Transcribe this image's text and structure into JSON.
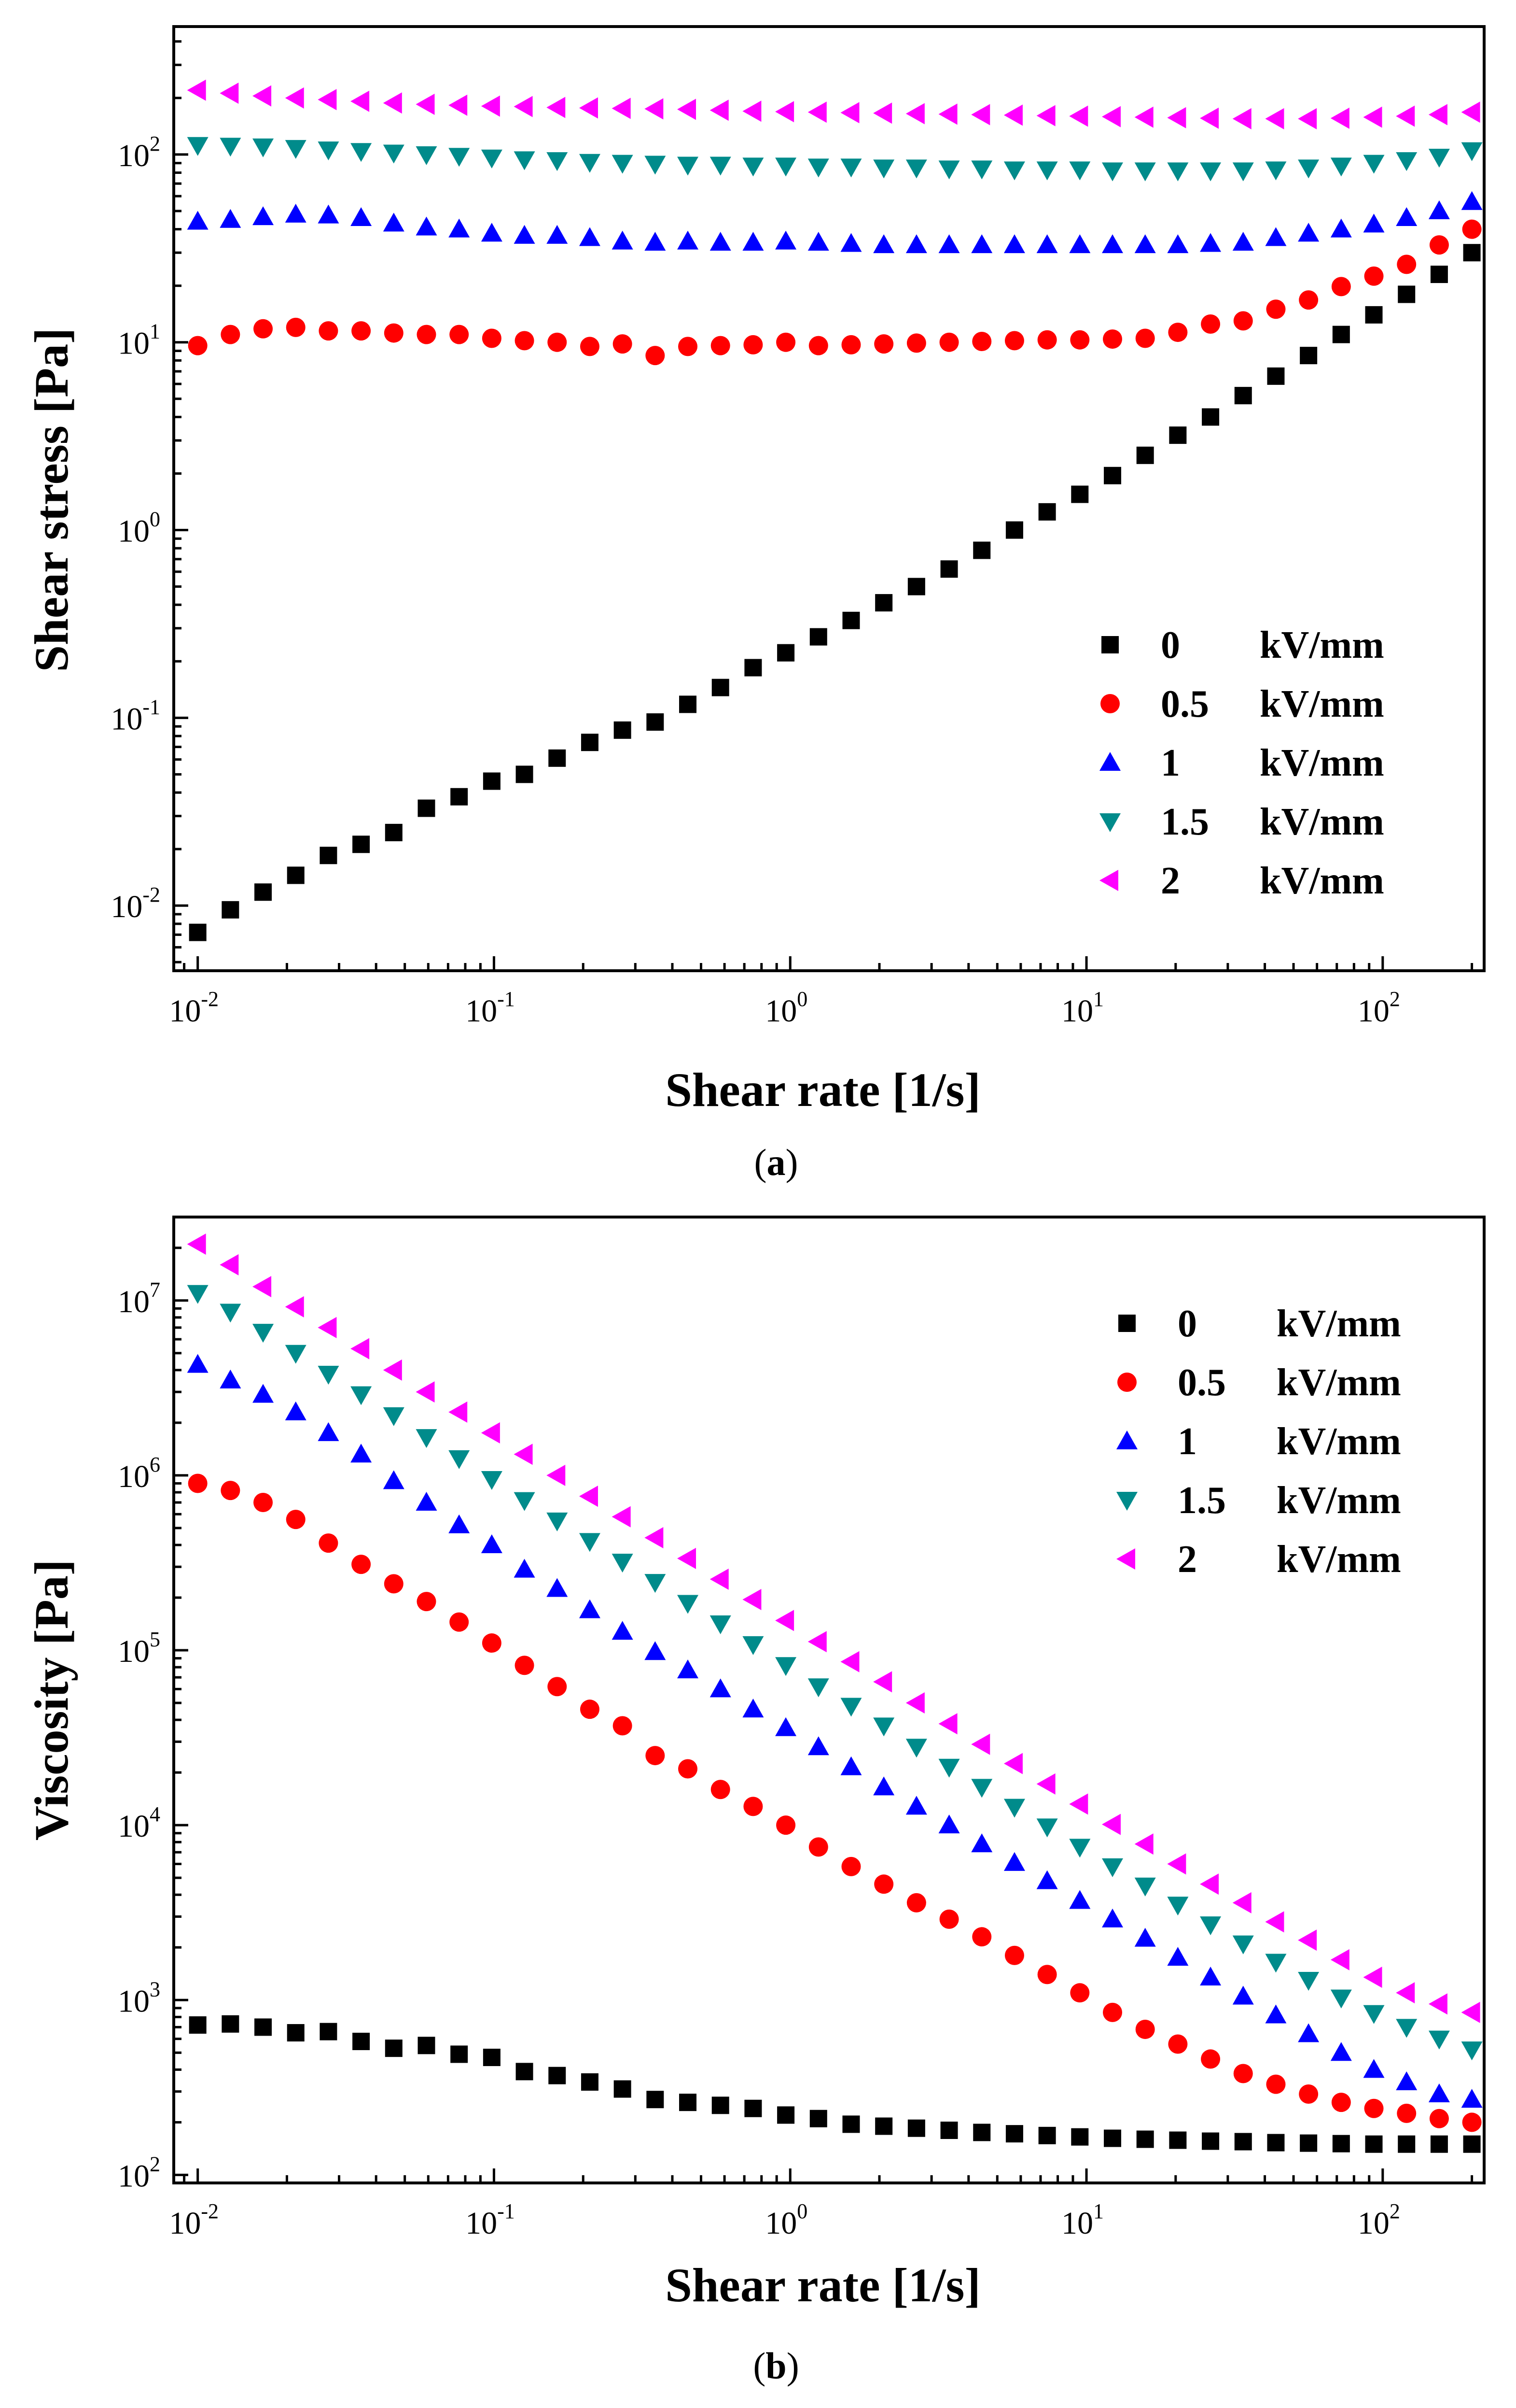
{
  "panels": [
    {
      "id": "a",
      "caption": {
        "open": "(",
        "letter": "a",
        "close": ")"
      },
      "chart_data": {
        "type": "scatter",
        "title": "",
        "xlabel": "Shear rate [1/s]",
        "ylabel": "Shear stress [Pa]",
        "xscale": "log",
        "yscale": "log",
        "xlim": [
          0.0083,
          220
        ],
        "ylim": [
          0.0045,
          480
        ],
        "xticks": [
          {
            "value": 0.01,
            "base": "10",
            "exp": "-2"
          },
          {
            "value": 0.1,
            "base": "10",
            "exp": "-1"
          },
          {
            "value": 1,
            "base": "10",
            "exp": "0"
          },
          {
            "value": 10,
            "base": "10",
            "exp": "1"
          },
          {
            "value": 100,
            "base": "10",
            "exp": "2"
          }
        ],
        "yticks": [
          {
            "value": 0.01,
            "base": "10",
            "exp": "-2"
          },
          {
            "value": 0.1,
            "base": "10",
            "exp": "-1"
          },
          {
            "value": 1,
            "base": "10",
            "exp": "0"
          },
          {
            "value": 10,
            "base": "10",
            "exp": "1"
          },
          {
            "value": 100,
            "base": "10",
            "exp": "2"
          }
        ],
        "legend_position": "lower-right",
        "series": [
          {
            "name": "0",
            "unit": "kV/mm",
            "marker": "square",
            "color": "#000000",
            "values": [
              0.0072,
              0.0095,
              0.0118,
              0.0145,
              0.0185,
              0.0212,
              0.0245,
              0.033,
              0.038,
              0.046,
              0.05,
              0.061,
              0.074,
              0.086,
              0.095,
              0.118,
              0.145,
              0.185,
              0.222,
              0.27,
              0.33,
              0.41,
              0.5,
              0.62,
              0.78,
              1.0,
              1.25,
              1.55,
              1.95,
              2.5,
              3.2,
              4.0,
              5.2,
              6.6,
              8.5,
              11.0,
              14.0,
              18.0,
              23.0,
              30.0
            ]
          },
          {
            "name": "0.5",
            "unit": "kV/mm",
            "marker": "circle",
            "color": "#ff0000",
            "values": [
              9.6,
              11.0,
              11.8,
              12.0,
              11.5,
              11.5,
              11.2,
              11.0,
              11.0,
              10.5,
              10.2,
              10.0,
              9.5,
              9.8,
              8.5,
              9.5,
              9.6,
              9.7,
              10.0,
              9.6,
              9.7,
              9.8,
              9.9,
              10.0,
              10.1,
              10.2,
              10.3,
              10.3,
              10.4,
              10.5,
              11.3,
              12.5,
              13.0,
              15.0,
              16.8,
              19.8,
              22.5,
              26.0,
              33.0,
              40.0
            ]
          },
          {
            "name": "1",
            "unit": "kV/mm",
            "marker": "triangle-up",
            "color": "#0000ff",
            "values": [
              44.0,
              45.0,
              46.5,
              48.0,
              47.5,
              46.0,
              43.0,
              41.0,
              40.0,
              38.0,
              37.0,
              37.0,
              36.0,
              34.5,
              34.0,
              34.5,
              34.0,
              34.0,
              34.5,
              34.0,
              33.5,
              33.0,
              33.0,
              33.0,
              33.0,
              33.0,
              33.0,
              33.0,
              33.0,
              33.0,
              33.0,
              33.5,
              34.0,
              36.0,
              38.0,
              40.0,
              42.5,
              46.0,
              50.0,
              56.0
            ]
          },
          {
            "name": "1.5",
            "unit": "kV/mm",
            "marker": "triangle-down",
            "color": "#008b8b",
            "values": [
              112,
              111,
              110,
              108,
              106,
              104,
              102,
              100,
              98,
              96,
              94,
              93,
              91,
              90,
              89,
              88,
              88,
              87,
              87,
              86,
              86,
              85,
              85,
              84,
              84,
              83,
              83,
              83,
              82,
              82,
              82,
              82,
              82,
              83,
              85,
              87,
              90,
              93,
              97,
              105
            ]
          },
          {
            "name": "2",
            "unit": "kV/mm",
            "marker": "triangle-left",
            "color": "#ff00ff",
            "values": [
              220,
              212,
              205,
              200,
              196,
              192,
              188,
              185,
              183,
              181,
              180,
              178,
              177,
              176,
              175,
              174,
              172,
              170,
              169,
              168,
              167,
              166,
              165,
              164,
              163,
              162,
              161,
              160,
              159,
              158,
              157,
              156,
              155,
              155,
              155,
              156,
              158,
              160,
              163,
              168
            ]
          }
        ]
      }
    },
    {
      "id": "b",
      "caption": {
        "open": "(",
        "letter": "b",
        "close": ")"
      },
      "chart_data": {
        "type": "scatter",
        "title": "",
        "xlabel": "Shear rate [1/s]",
        "ylabel": "Viscosity [Pa]",
        "xscale": "log",
        "yscale": "log",
        "xlim": [
          0.0083,
          220
        ],
        "ylim": [
          90,
          30000000
        ],
        "xticks": [
          {
            "value": 0.01,
            "base": "10",
            "exp": "-2"
          },
          {
            "value": 0.1,
            "base": "10",
            "exp": "-1"
          },
          {
            "value": 1,
            "base": "10",
            "exp": "0"
          },
          {
            "value": 10,
            "base": "10",
            "exp": "1"
          },
          {
            "value": 100,
            "base": "10",
            "exp": "2"
          }
        ],
        "yticks": [
          {
            "value": 100,
            "base": "10",
            "exp": "2"
          },
          {
            "value": 1000,
            "base": "10",
            "exp": "3"
          },
          {
            "value": 10000,
            "base": "10",
            "exp": "4"
          },
          {
            "value": 100000,
            "base": "10",
            "exp": "5"
          },
          {
            "value": 1000000,
            "base": "10",
            "exp": "6"
          },
          {
            "value": 10000000,
            "base": "10",
            "exp": "7"
          }
        ],
        "legend_position": "top-right",
        "series": [
          {
            "name": "0",
            "unit": "kV/mm",
            "marker": "square",
            "color": "#000000",
            "values": [
              720,
              730,
              700,
              650,
              660,
              580,
              530,
              550,
              490,
              470,
              390,
              370,
              340,
              310,
              270,
              260,
              250,
              240,
              220,
              210,
              195,
              190,
              185,
              180,
              175,
              172,
              168,
              165,
              162,
              160,
              158,
              156,
              155,
              153,
              152,
              151,
              150,
              150,
              150,
              150
            ]
          },
          {
            "name": "0.5",
            "unit": "kV/mm",
            "marker": "circle",
            "color": "#ff0000",
            "values": [
              900000,
              820000,
              700000,
              560000,
              410000,
              310000,
              240000,
              190000,
              145000,
              110000,
              82000,
              62000,
              46000,
              37000,
              25000,
              21000,
              16000,
              12800,
              10000,
              7500,
              5800,
              4600,
              3600,
              2900,
              2300,
              1800,
              1400,
              1100,
              850,
              680,
              560,
              460,
              380,
              330,
              290,
              260,
              240,
              225,
              210,
              200
            ]
          },
          {
            "name": "1",
            "unit": "kV/mm",
            "marker": "triangle-up",
            "color": "#0000ff",
            "values": [
              4300000,
              3500000,
              2900000,
              2300000,
              1750000,
              1320000,
              930000,
              700000,
              520000,
              400000,
              290000,
              225000,
              170000,
              128000,
              98000,
              77000,
              60000,
              46000,
              36000,
              28000,
              21500,
              16500,
              12800,
              10000,
              7800,
              6100,
              4800,
              3700,
              2900,
              2250,
              1750,
              1350,
              1050,
              820,
              640,
              500,
              400,
              340,
              290,
              270
            ]
          },
          {
            "name": "1.5",
            "unit": "kV/mm",
            "marker": "triangle-down",
            "color": "#008b8b",
            "values": [
              11000000,
              8600000,
              6600000,
              5000000,
              3800000,
              2900000,
              2200000,
              1650000,
              1250000,
              950000,
              720000,
              550000,
              420000,
              320000,
              245000,
              186000,
              142000,
              108000,
              82000,
              62000,
              48000,
              37000,
              28000,
              21500,
              16500,
              12700,
              9800,
              7500,
              5800,
              4500,
              3500,
              2700,
              2100,
              1650,
              1300,
              1030,
              840,
              700,
              600,
              520
            ]
          },
          {
            "name": "2",
            "unit": "kV/mm",
            "marker": "triangle-left",
            "color": "#ff00ff",
            "values": [
              21000000,
              16000000,
              12000000,
              9200000,
              7000000,
              5300000,
              4000000,
              3000000,
              2300000,
              1750000,
              1320000,
              1000000,
              760000,
              580000,
              440000,
              335000,
              255000,
              195000,
              148000,
              112000,
              86000,
              66000,
              50000,
              38000,
              29000,
              22500,
              17200,
              13200,
              10100,
              7800,
              6000,
              4600,
              3600,
              2800,
              2200,
              1700,
              1350,
              1100,
              950,
              850
            ]
          }
        ]
      }
    }
  ]
}
